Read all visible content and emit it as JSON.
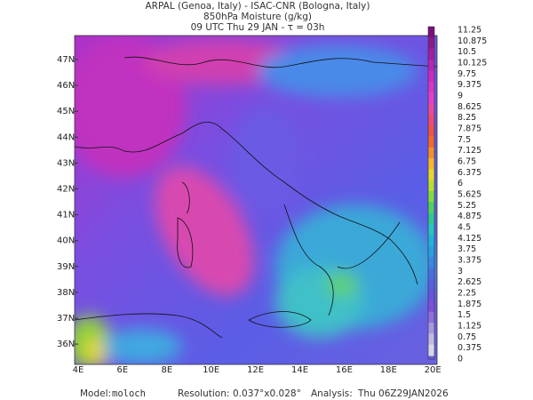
{
  "header": {
    "line1": "ARPAL (Genoa, Italy)  -  ISAC-CNR (Bologna, Italy)",
    "line2": "850hPa Moisture (g/kg)",
    "line3": "09 UTC Thu 29 JAN  -  τ = 03h"
  },
  "map": {
    "lat_labels": [
      "47N",
      "46N",
      "45N",
      "44N",
      "43N",
      "42N",
      "41N",
      "40N",
      "39N",
      "38N",
      "37N",
      "36N"
    ],
    "lon_labels": [
      "4E",
      "6E",
      "8E",
      "10E",
      "12E",
      "14E",
      "16E",
      "18E",
      "20E"
    ]
  },
  "colorbar": {
    "labels": [
      11.25,
      10.875,
      10.5,
      10.125,
      9.75,
      9.375,
      9,
      8.625,
      8.25,
      7.875,
      7.5,
      7.125,
      6.75,
      6.375,
      6,
      5.625,
      5.25,
      4.875,
      4.5,
      4.125,
      3.75,
      3.375,
      3,
      2.625,
      2.25,
      1.875,
      1.5,
      1.125,
      0.75,
      0.375,
      0
    ],
    "colors": [
      "#7a0f7a",
      "#8c1a8c",
      "#a0209f",
      "#b626b0",
      "#c92cbf",
      "#d836c5",
      "#e040c8",
      "#e84aa0",
      "#ec4c74",
      "#ee5548",
      "#f06a30",
      "#f3902a",
      "#f6b82a",
      "#e8d82a",
      "#b8e030",
      "#80dc40",
      "#50d060",
      "#30c890",
      "#28c4c0",
      "#22b4d8",
      "#2aa0e0",
      "#3a88e0",
      "#4a70e0",
      "#5a5ee0",
      "#6a54dc",
      "#7e50d8",
      "#9070d8",
      "#a898dc",
      "#c0bce2",
      "#d8d8e8"
    ]
  },
  "footer": {
    "model_label": "Model:",
    "model": "moloch",
    "resolution_label": "Resolution:",
    "resolution": "0.037°x0.028°",
    "analysis_label": "Analysis:",
    "analysis": "Thu 06Z29JAN2026"
  }
}
